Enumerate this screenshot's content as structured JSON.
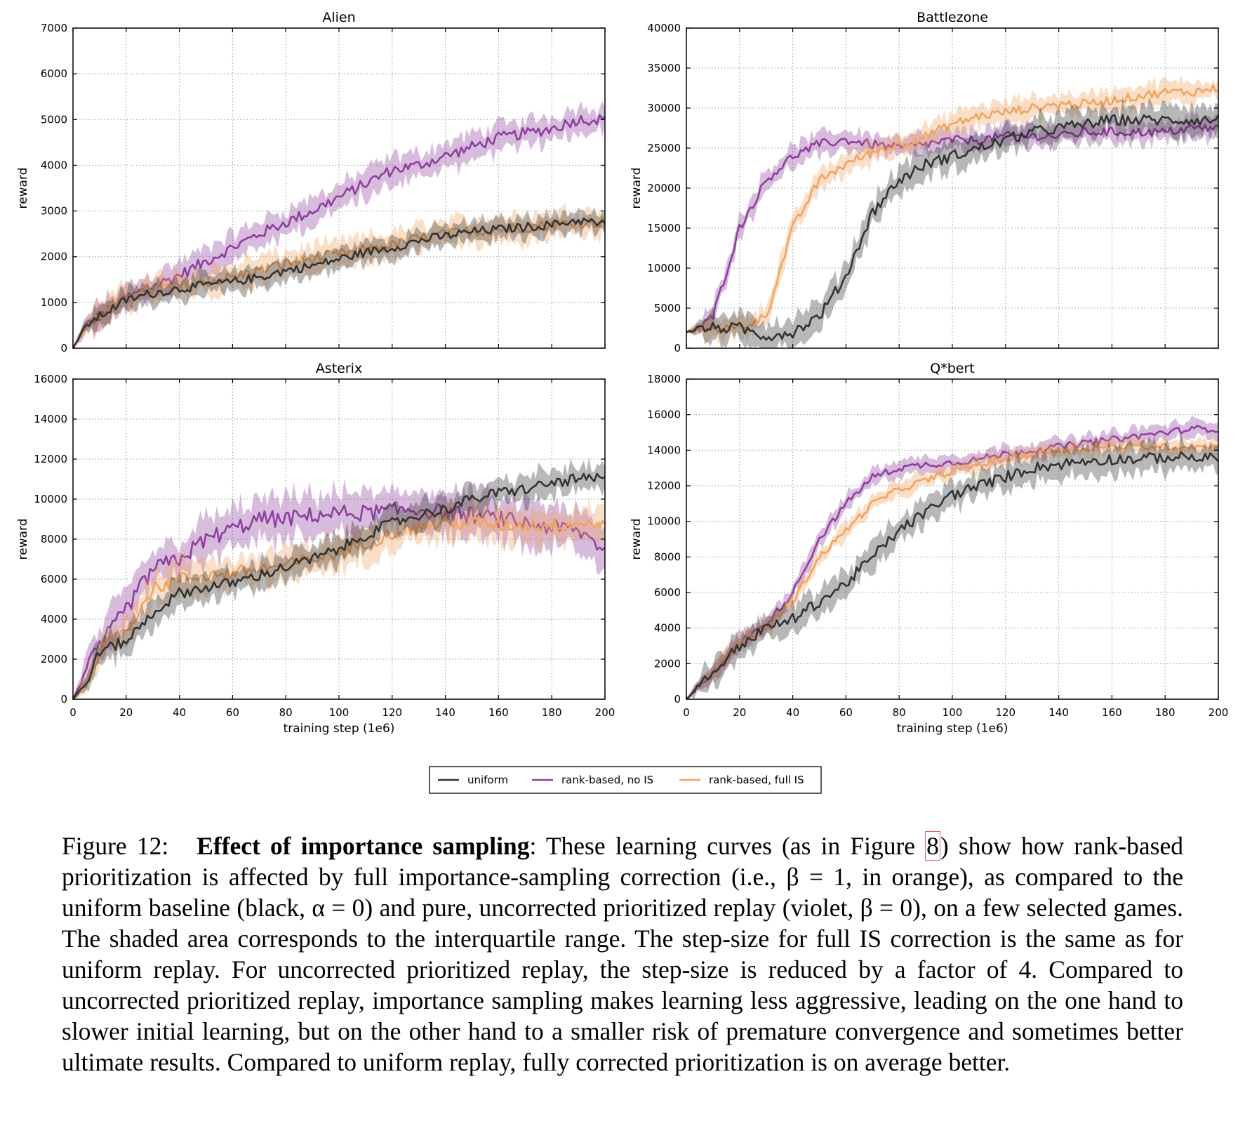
{
  "figure": {
    "caption_label": "Figure 12:",
    "caption_bold": "Effect of importance sampling",
    "caption_part1": ": These learning curves (as in Figure ",
    "caption_ref": "8",
    "caption_part2": ") show how rank-based prioritization is affected by full importance-sampling correction (i.e., β = 1, in orange), as compared to the uniform baseline (black, α = 0) and pure, uncorrected prioritized replay (violet, β = 0), on a few selected games. The shaded area corresponds to the interquartile range. The step-size for full IS correction is the same as for uniform replay. For uncorrected prioritized replay, the step-size is reduced by a factor of 4. Compared to uncorrected prioritized replay, importance sampling makes learning less aggressive, leading on the one hand to slower initial learning, but on the other hand to a smaller risk of premature convergence and sometimes better ultimate results. Compared to uniform replay, fully corrected prioritization is on average better."
  },
  "legend": {
    "entries": [
      "uniform",
      "rank-based, no IS",
      "rank-based, full IS"
    ],
    "colors": [
      "#333333",
      "#8e3f9e",
      "#f0a460"
    ],
    "placement": "bottom-center"
  },
  "chart_data": [
    {
      "type": "line",
      "title": "Alien",
      "xlabel": "",
      "ylabel": "reward",
      "xlim": [
        0,
        200
      ],
      "ylim": [
        0,
        7000
      ],
      "yticks": [
        0,
        1000,
        2000,
        3000,
        4000,
        5000,
        6000,
        7000
      ],
      "xticks": [],
      "grid": true,
      "x": [
        0,
        5,
        10,
        20,
        30,
        40,
        50,
        60,
        70,
        80,
        90,
        100,
        110,
        120,
        130,
        140,
        150,
        160,
        170,
        180,
        190,
        200
      ],
      "series": [
        {
          "name": "uniform",
          "values": [
            0,
            500,
            700,
            1050,
            1200,
            1300,
            1380,
            1450,
            1550,
            1700,
            1800,
            1950,
            2100,
            2200,
            2350,
            2450,
            2550,
            2600,
            2650,
            2700,
            2800,
            2700
          ],
          "spread": 0.08
        },
        {
          "name": "rank-based, no IS",
          "values": [
            0,
            500,
            700,
            1100,
            1350,
            1600,
            1900,
            2200,
            2500,
            2750,
            3000,
            3300,
            3600,
            3900,
            4000,
            4200,
            4400,
            4600,
            4700,
            4800,
            5000,
            5000
          ],
          "spread": 0.1
        },
        {
          "name": "rank-based, full IS",
          "values": [
            0,
            500,
            700,
            1100,
            1300,
            1350,
            1450,
            1550,
            1700,
            1850,
            1950,
            2050,
            2150,
            2250,
            2400,
            2500,
            2550,
            2600,
            2650,
            2700,
            2750,
            2750
          ],
          "spread": 0.1
        }
      ]
    },
    {
      "type": "line",
      "title": "Battlezone",
      "xlabel": "",
      "ylabel": "reward",
      "xlim": [
        0,
        200
      ],
      "ylim": [
        0,
        40000
      ],
      "yticks": [
        0,
        5000,
        10000,
        15000,
        20000,
        25000,
        30000,
        35000,
        40000
      ],
      "xticks": [],
      "grid": true,
      "x": [
        0,
        5,
        10,
        20,
        30,
        40,
        50,
        60,
        70,
        80,
        90,
        100,
        110,
        120,
        130,
        140,
        150,
        160,
        170,
        180,
        190,
        200
      ],
      "series": [
        {
          "name": "uniform",
          "values": [
            2000,
            2500,
            2500,
            2500,
            1500,
            2000,
            4000,
            9000,
            17000,
            21000,
            23000,
            24000,
            25000,
            26000,
            27000,
            27500,
            28000,
            28500,
            28500,
            28500,
            28500,
            28500
          ],
          "spread": 0.1
        },
        {
          "name": "rank-based, no IS",
          "values": [
            2000,
            2500,
            4000,
            15000,
            21000,
            24000,
            25500,
            26000,
            25500,
            25000,
            25500,
            26000,
            26000,
            26500,
            26500,
            26500,
            27000,
            27000,
            27000,
            27000,
            27500,
            27500
          ],
          "spread": 0.08
        },
        {
          "name": "rank-based, full IS",
          "values": [
            2000,
            2500,
            2500,
            2500,
            4000,
            15000,
            21000,
            23000,
            24500,
            25500,
            26500,
            28000,
            29000,
            29500,
            30000,
            30500,
            30500,
            31000,
            31500,
            32000,
            32000,
            32500
          ],
          "spread": 0.08
        }
      ]
    },
    {
      "type": "line",
      "title": "Asterix",
      "xlabel": "training step (1e6)",
      "ylabel": "reward",
      "xlim": [
        0,
        200
      ],
      "ylim": [
        0,
        16000
      ],
      "yticks": [
        0,
        2000,
        4000,
        6000,
        8000,
        10000,
        12000,
        14000,
        16000
      ],
      "xticks": [
        0,
        20,
        40,
        60,
        80,
        100,
        120,
        140,
        160,
        180,
        200
      ],
      "grid": true,
      "x": [
        0,
        5,
        10,
        20,
        30,
        40,
        50,
        60,
        70,
        80,
        90,
        100,
        110,
        120,
        130,
        140,
        150,
        160,
        170,
        180,
        190,
        200
      ],
      "series": [
        {
          "name": "uniform",
          "values": [
            0,
            800,
            2400,
            2900,
            4300,
            5300,
            5600,
            5800,
            6200,
            6600,
            7000,
            7500,
            8200,
            8800,
            9200,
            9500,
            10000,
            10300,
            10500,
            10800,
            11000,
            11000
          ],
          "spread": 0.1
        },
        {
          "name": "rank-based, no IS",
          "values": [
            0,
            1500,
            2600,
            4500,
            6500,
            7000,
            8000,
            8500,
            9000,
            9000,
            9200,
            9300,
            9300,
            9400,
            9500,
            9300,
            9200,
            9000,
            8800,
            8600,
            8400,
            7500
          ],
          "spread": 0.15
        },
        {
          "name": "rank-based, full IS",
          "values": [
            0,
            800,
            2400,
            3500,
            5500,
            6000,
            6200,
            6300,
            6500,
            6700,
            7000,
            7300,
            7800,
            8300,
            8600,
            8800,
            8800,
            8700,
            8700,
            8700,
            8800,
            8800
          ],
          "spread": 0.12
        }
      ]
    },
    {
      "type": "line",
      "title": "Q*bert",
      "xlabel": "training step (1e6)",
      "ylabel": "reward",
      "xlim": [
        0,
        200
      ],
      "ylim": [
        0,
        18000
      ],
      "yticks": [
        0,
        2000,
        4000,
        6000,
        8000,
        10000,
        12000,
        14000,
        16000,
        18000
      ],
      "xticks": [
        0,
        20,
        40,
        60,
        80,
        100,
        120,
        140,
        160,
        180,
        200
      ],
      "grid": true,
      "x": [
        0,
        5,
        10,
        20,
        30,
        40,
        50,
        60,
        70,
        80,
        90,
        100,
        110,
        120,
        130,
        140,
        150,
        160,
        170,
        180,
        190,
        200
      ],
      "series": [
        {
          "name": "uniform",
          "values": [
            0,
            800,
            1500,
            3000,
            4000,
            4500,
            5500,
            6500,
            8000,
            9500,
            10500,
            11500,
            12000,
            12500,
            13000,
            13200,
            13400,
            13500,
            13500,
            13600,
            13600,
            13500
          ],
          "spread": 0.1
        },
        {
          "name": "rank-based, no IS",
          "values": [
            0,
            800,
            1500,
            3200,
            4200,
            6000,
            9000,
            11000,
            12500,
            13000,
            13200,
            13300,
            13500,
            13800,
            14000,
            14200,
            14400,
            14600,
            14800,
            15000,
            15200,
            15200
          ],
          "spread": 0.06
        },
        {
          "name": "rank-based, full IS",
          "values": [
            0,
            800,
            1500,
            3200,
            4000,
            5500,
            8000,
            9500,
            11000,
            11800,
            12300,
            12800,
            13200,
            13500,
            13800,
            14000,
            14100,
            14200,
            14200,
            14200,
            14200,
            14200
          ],
          "spread": 0.06
        }
      ]
    }
  ]
}
